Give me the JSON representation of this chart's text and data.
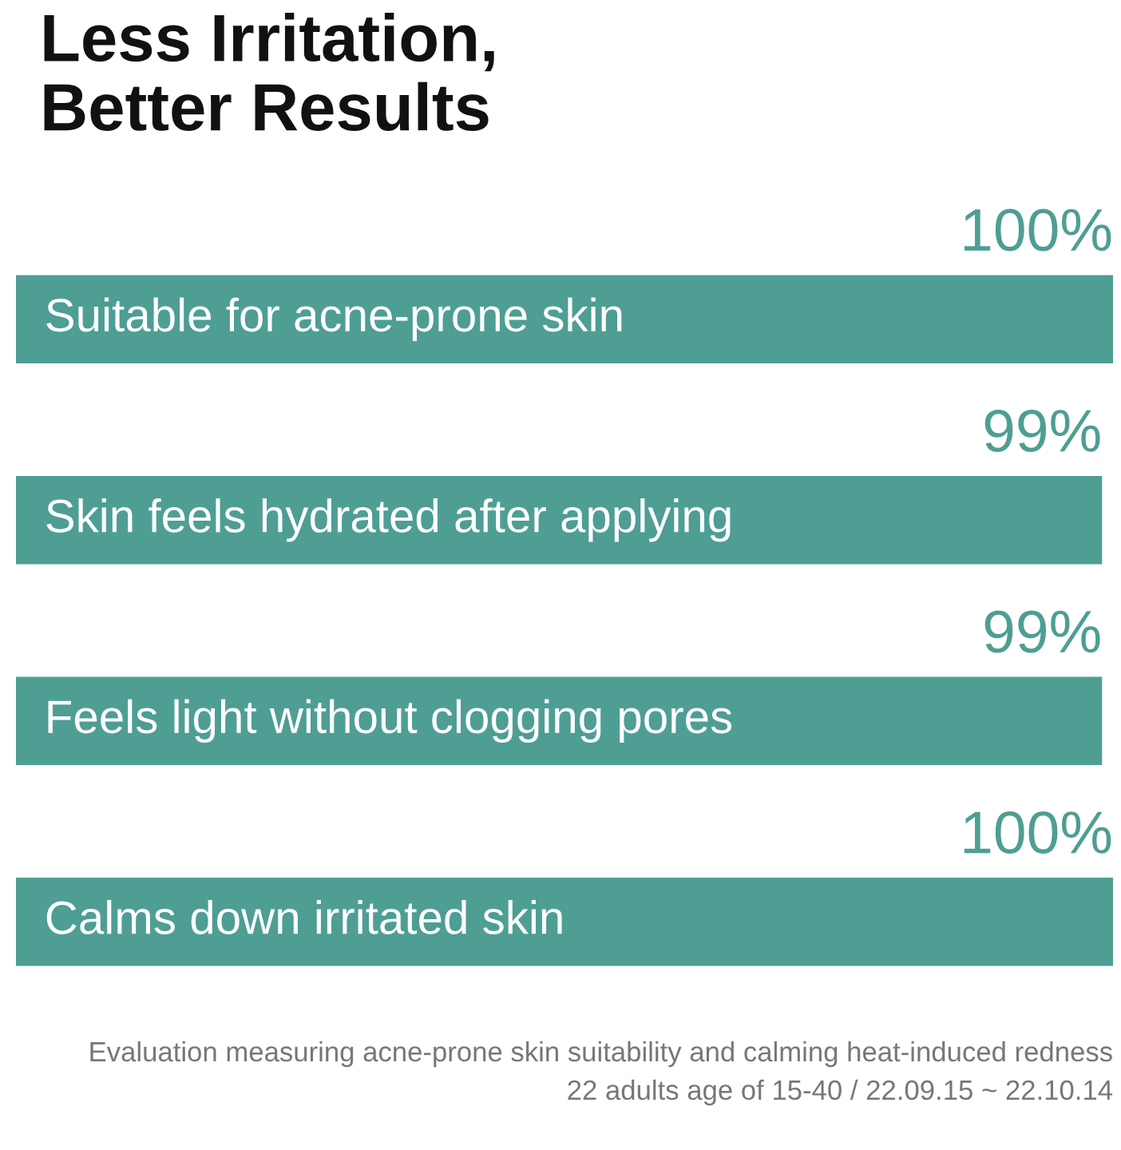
{
  "chart_data": {
    "type": "bar",
    "orientation": "horizontal",
    "title": "Less Irritation,\nBetter Results",
    "categories": [
      "Suitable for acne-prone skin",
      "Skin feels hydrated after applying",
      "Feels light without clogging pores",
      "Calms down irritated skin"
    ],
    "values": [
      100,
      99,
      99,
      100
    ],
    "value_labels": [
      "100%",
      "99%",
      "99%",
      "100%"
    ],
    "color": "#4e9e94",
    "xlim": [
      0,
      100
    ],
    "legend": false,
    "annotations": [
      "Evaluation measuring acne-prone skin suitability and calming heat-induced redness",
      "22 adults age of 15-40 / 22.09.15 ~ 22.10.14"
    ]
  }
}
